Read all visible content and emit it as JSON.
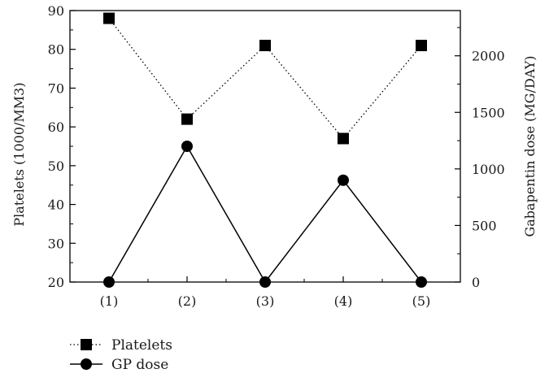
{
  "chart_data": {
    "type": "line",
    "categories": [
      "(1)",
      "(2)",
      "(3)",
      "(4)",
      "(5)"
    ],
    "series": [
      {
        "name": "Platelets",
        "axis": "left",
        "values": [
          88,
          62,
          81,
          57,
          81
        ],
        "marker": "square",
        "line_style": "dotted",
        "color": "#000000"
      },
      {
        "name": "GP dose",
        "axis": "right",
        "values": [
          0,
          1200,
          0,
          900,
          0
        ],
        "marker": "circle",
        "line_style": "solid",
        "color": "#000000"
      }
    ],
    "ylabel": "Platelets (1000/MM3)",
    "y2label": "Gabapentin dose (MG/DAY)",
    "ylim": [
      20,
      90
    ],
    "y2lim": [
      0,
      2400
    ],
    "yticks": [
      20,
      30,
      40,
      50,
      60,
      70,
      80,
      90
    ],
    "y2ticks": [
      0,
      500,
      1000,
      1500,
      2000
    ],
    "grid": false,
    "legend_position": "bottom-left"
  }
}
